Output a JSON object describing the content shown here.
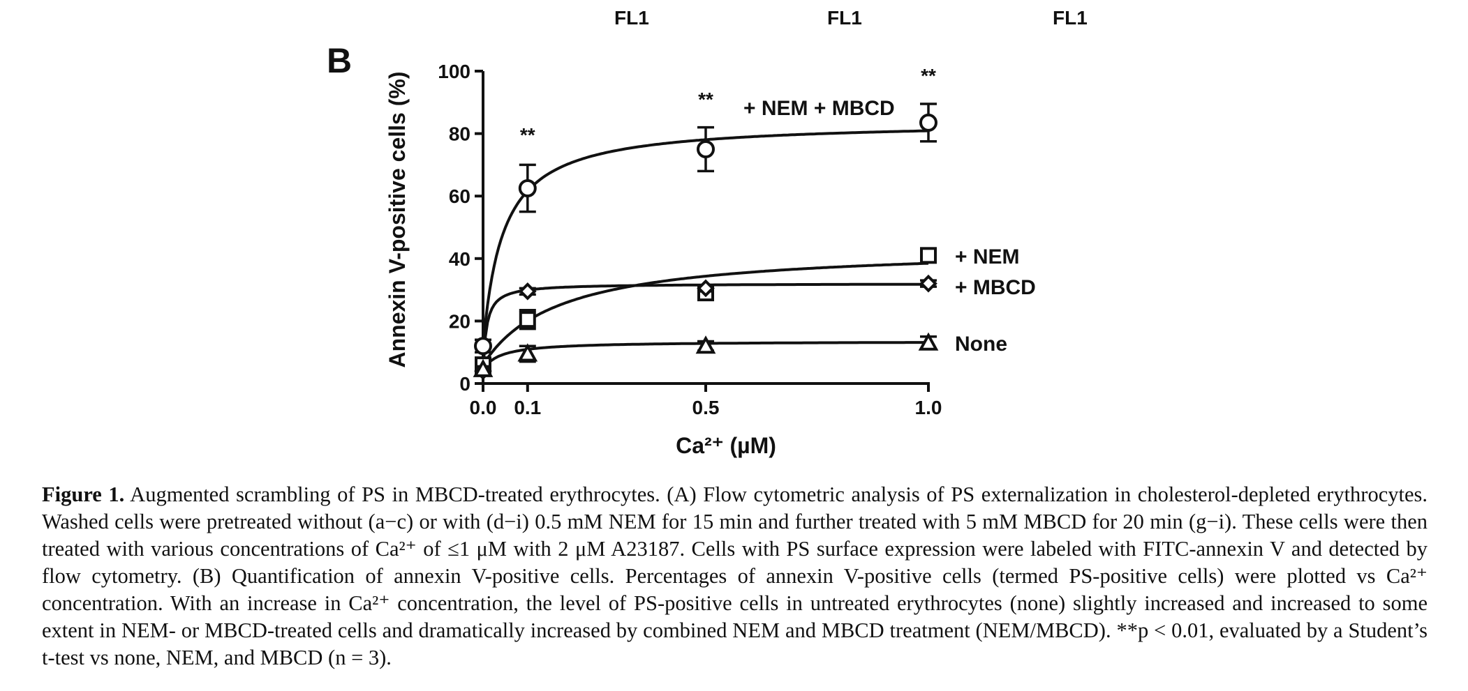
{
  "header_labels": [
    "FL1",
    "FL1",
    "FL1"
  ],
  "panel_label": "B",
  "chart_data": {
    "type": "scatter",
    "xlabel": "Ca²⁺ (µM)",
    "ylabel": "Annexin V-positive cells (%)",
    "x_ticks": [
      "0.0",
      "0.1",
      "0.5",
      "1.0"
    ],
    "y_ticks": [
      "0",
      "20",
      "40",
      "60",
      "80",
      "100"
    ],
    "xlim": [
      0,
      1.0
    ],
    "ylim": [
      0,
      100
    ],
    "grid": false,
    "legend": "direct labels at right of curves",
    "x": [
      0,
      0.1,
      0.5,
      1.0
    ],
    "series": [
      {
        "name": "+ NEM + MBCD",
        "marker": "circle",
        "values": [
          12,
          62.5,
          75,
          83.5
        ],
        "errors": [
          2,
          7.5,
          7,
          6
        ],
        "fit_max": 84,
        "fit_k": 0.045
      },
      {
        "name": "+ NEM",
        "marker": "square",
        "values": [
          6,
          20.5,
          29,
          41
        ],
        "errors": [
          1.5,
          3,
          2,
          2
        ],
        "fit_max": 44,
        "fit_k": 0.17
      },
      {
        "name": "+ MBCD",
        "marker": "diamond",
        "values": [
          4,
          29.5,
          30.5,
          32
        ],
        "errors": [
          1,
          1,
          1,
          1
        ],
        "fit_max": 32,
        "fit_k": 0.008
      },
      {
        "name": "None",
        "marker": "triangle",
        "values": [
          4.5,
          9.5,
          12,
          13
        ],
        "errors": [
          1,
          2.5,
          1.5,
          2
        ],
        "fit_max": 13.5,
        "fit_k": 0.04
      }
    ],
    "annotations": [
      {
        "x": 0.1,
        "text": "**"
      },
      {
        "x": 0.5,
        "text": "**"
      },
      {
        "x": 1.0,
        "text": "**"
      }
    ]
  },
  "caption": {
    "label": "Figure 1.",
    "text": "Augmented scrambling of PS in MBCD-treated erythrocytes. (A) Flow cytometric analysis of PS externalization in cholesterol-depleted erythrocytes. Washed cells were pretreated without (a−c) or with (d−i) 0.5 mM NEM for 15 min and further treated with 5 mM MBCD for 20 min (g−i). These cells were then treated with various concentrations of Ca²⁺ of ≤1 μM with 2 μM A23187. Cells with PS surface expression were labeled with FITC-annexin V and detected by flow cytometry. (B) Quantification of annexin V-positive cells. Percentages of annexin V-positive cells (termed PS-positive cells) were plotted vs Ca²⁺ concentration. With an increase in Ca²⁺ concentration, the level of PS-positive cells in untreated erythrocytes (none) slightly increased and increased to some extent in NEM- or MBCD-treated cells and dramatically increased by combined NEM and MBCD treatment (NEM/MBCD). **p < 0.01, evaluated by a Student’s t-test vs none, NEM, and MBCD (n = 3)."
  }
}
